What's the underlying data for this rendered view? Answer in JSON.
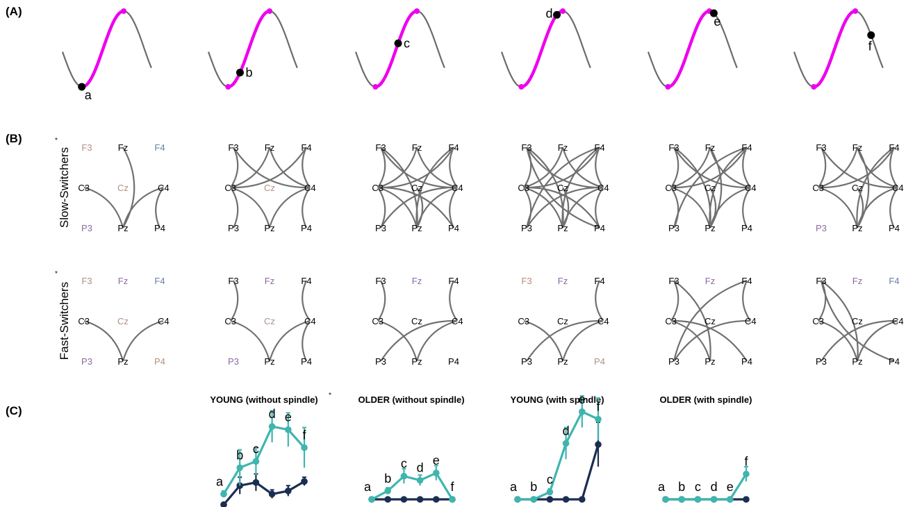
{
  "panels": {
    "A": "(A)",
    "B": "(B)",
    "C": "(C)"
  },
  "star": "*",
  "colors": {
    "wave": "#6b6b6b",
    "highlight": "#ee00ee",
    "marker": "#000000",
    "edge": "#707070",
    "young": "#3fb5ae",
    "older": "#1b2d52",
    "inactive_a": "#b09080",
    "inactive_b": "#8a6aa0",
    "inactive_c": "#6a7ea0"
  },
  "phase_points": [
    "a",
    "b",
    "c",
    "d",
    "e",
    "f"
  ],
  "network": {
    "electrodes": [
      "F3",
      "Fz",
      "F4",
      "C3",
      "Cz",
      "C4",
      "P3",
      "Pz",
      "P4"
    ],
    "rows": [
      {
        "label": "Slow-Switchers",
        "panels": [
          {
            "inactive": [
              "F3",
              "F4",
              "Cz",
              "P3"
            ],
            "edges": [
              [
                "Fz",
                "Pz"
              ],
              [
                "C3",
                "Pz"
              ],
              [
                "C4",
                "Pz"
              ],
              [
                "C4",
                "P4"
              ]
            ]
          },
          {
            "inactive": [
              "Cz"
            ],
            "edges": [
              [
                "F3",
                "C3"
              ],
              [
                "F3",
                "C4"
              ],
              [
                "Fz",
                "C3"
              ],
              [
                "Fz",
                "C4"
              ],
              [
                "F4",
                "C3"
              ],
              [
                "F4",
                "C4"
              ],
              [
                "C3",
                "P3"
              ],
              [
                "C3",
                "Pz"
              ],
              [
                "C4",
                "Pz"
              ],
              [
                "C4",
                "P4"
              ]
            ]
          },
          {
            "inactive": [],
            "edges": [
              [
                "F3",
                "C3"
              ],
              [
                "F3",
                "C4"
              ],
              [
                "F3",
                "Pz"
              ],
              [
                "Fz",
                "C3"
              ],
              [
                "Fz",
                "C4"
              ],
              [
                "F4",
                "C3"
              ],
              [
                "F4",
                "C4"
              ],
              [
                "F4",
                "Pz"
              ],
              [
                "C3",
                "P3"
              ],
              [
                "C3",
                "Pz"
              ],
              [
                "C3",
                "P4"
              ],
              [
                "C4",
                "P3"
              ],
              [
                "C4",
                "Pz"
              ],
              [
                "C4",
                "P4"
              ],
              [
                "Cz",
                "Pz"
              ]
            ]
          },
          {
            "inactive": [],
            "edges": [
              [
                "F3",
                "C3"
              ],
              [
                "F3",
                "C4"
              ],
              [
                "F3",
                "Pz"
              ],
              [
                "F3",
                "P4"
              ],
              [
                "Fz",
                "C3"
              ],
              [
                "Fz",
                "C4"
              ],
              [
                "F4",
                "C3"
              ],
              [
                "F4",
                "C4"
              ],
              [
                "F4",
                "Pz"
              ],
              [
                "F4",
                "P3"
              ],
              [
                "C3",
                "P3"
              ],
              [
                "C3",
                "Pz"
              ],
              [
                "C3",
                "P4"
              ],
              [
                "C4",
                "P3"
              ],
              [
                "C4",
                "Pz"
              ],
              [
                "C4",
                "P4"
              ],
              [
                "Cz",
                "Pz"
              ]
            ]
          },
          {
            "inactive": [],
            "edges": [
              [
                "F3",
                "C3"
              ],
              [
                "F3",
                "C4"
              ],
              [
                "F3",
                "Pz"
              ],
              [
                "Fz",
                "C3"
              ],
              [
                "Fz",
                "C4"
              ],
              [
                "Fz",
                "Pz"
              ],
              [
                "F4",
                "C3"
              ],
              [
                "F4",
                "C4"
              ],
              [
                "F4",
                "Pz"
              ],
              [
                "F4",
                "P3"
              ],
              [
                "C3",
                "P3"
              ],
              [
                "C3",
                "Pz"
              ],
              [
                "C4",
                "Pz"
              ],
              [
                "C4",
                "P4"
              ],
              [
                "Cz",
                "Pz"
              ]
            ]
          },
          {
            "inactive": [
              "P3"
            ],
            "edges": [
              [
                "F3",
                "C3"
              ],
              [
                "F3",
                "C4"
              ],
              [
                "Fz",
                "C3"
              ],
              [
                "Fz",
                "C4"
              ],
              [
                "F4",
                "C3"
              ],
              [
                "F4",
                "C4"
              ],
              [
                "F4",
                "Pz"
              ],
              [
                "C3",
                "Pz"
              ],
              [
                "C4",
                "Pz"
              ],
              [
                "C4",
                "P4"
              ],
              [
                "Cz",
                "Pz"
              ],
              [
                "Fz",
                "Pz"
              ]
            ]
          }
        ]
      },
      {
        "label": "Fast-Switchers",
        "panels": [
          {
            "inactive": [
              "F3",
              "Fz",
              "F4",
              "Cz",
              "P3",
              "P4"
            ],
            "edges": [
              [
                "C3",
                "Pz"
              ],
              [
                "C4",
                "Pz"
              ]
            ]
          },
          {
            "inactive": [
              "Fz",
              "Cz",
              "P3"
            ],
            "edges": [
              [
                "F3",
                "C3"
              ],
              [
                "F4",
                "C4"
              ],
              [
                "C3",
                "Pz"
              ],
              [
                "C4",
                "Pz"
              ],
              [
                "C4",
                "P4"
              ]
            ]
          },
          {
            "inactive": [
              "Fz"
            ],
            "edges": [
              [
                "F3",
                "C3"
              ],
              [
                "F4",
                "C4"
              ],
              [
                "C3",
                "Pz"
              ],
              [
                "C4",
                "Pz"
              ],
              [
                "C4",
                "P3"
              ]
            ]
          },
          {
            "inactive": [
              "F3",
              "Fz",
              "P4"
            ],
            "edges": [
              [
                "F4",
                "C4"
              ],
              [
                "C3",
                "Pz"
              ],
              [
                "C4",
                "Pz"
              ],
              [
                "C4",
                "P3"
              ]
            ]
          },
          {
            "inactive": [
              "Fz"
            ],
            "edges": [
              [
                "F3",
                "C3"
              ],
              [
                "F3",
                "Pz"
              ],
              [
                "F4",
                "C4"
              ],
              [
                "F4",
                "P3"
              ],
              [
                "C3",
                "Pz"
              ],
              [
                "C3",
                "P4"
              ],
              [
                "C4",
                "P3"
              ]
            ]
          },
          {
            "inactive": [
              "Fz",
              "F4"
            ],
            "edges": [
              [
                "F3",
                "C3"
              ],
              [
                "F3",
                "Pz"
              ],
              [
                "F3",
                "P4"
              ],
              [
                "C3",
                "Pz"
              ],
              [
                "C4",
                "P3"
              ],
              [
                "C4",
                "Pz"
              ]
            ]
          }
        ]
      }
    ]
  },
  "chart_data": [
    {
      "type": "line",
      "title": "YOUNG (without spindle)",
      "starred": true,
      "categories": [
        "a",
        "b",
        "c",
        "d",
        "e",
        "f"
      ],
      "series": [
        {
          "values": [
            0.5,
            3.0,
            3.6,
            6.9,
            6.6,
            4.9
          ],
          "errors": [
            0.3,
            1.7,
            1.3,
            1.5,
            1.6,
            1.9
          ]
        },
        {
          "values": [
            -0.5,
            1.3,
            1.6,
            0.5,
            0.8,
            1.7
          ],
          "errors": [
            0.0,
            0.8,
            0.8,
            0.4,
            0.5,
            0.4
          ]
        }
      ]
    },
    {
      "type": "line",
      "title": "OLDER (without spindle)",
      "starred": false,
      "categories": [
        "a",
        "b",
        "c",
        "d",
        "e",
        "f"
      ],
      "series": [
        {
          "values": [
            0.0,
            0.8,
            2.2,
            1.8,
            2.5,
            0.0
          ],
          "errors": [
            0.0,
            0.3,
            0.7,
            0.5,
            0.7,
            0.0
          ]
        },
        {
          "values": [
            0.0,
            0.0,
            0.0,
            0.0,
            0.0,
            0.0
          ],
          "errors": [
            0,
            0,
            0,
            0,
            0,
            0
          ]
        }
      ]
    },
    {
      "type": "line",
      "title": "YOUNG (with spindle)",
      "starred": false,
      "categories": [
        "a",
        "b",
        "c",
        "d",
        "e",
        "f"
      ],
      "series": [
        {
          "values": [
            0.0,
            0.0,
            0.7,
            5.3,
            8.3,
            7.6
          ],
          "errors": [
            0.0,
            0.0,
            0.3,
            1.5,
            1.5,
            2.0
          ]
        },
        {
          "values": [
            0.0,
            0.0,
            0.0,
            0.0,
            0.0,
            5.2
          ],
          "errors": [
            0,
            0,
            0,
            0,
            0,
            2.1
          ]
        }
      ]
    },
    {
      "type": "line",
      "title": "OLDER (with spindle)",
      "starred": false,
      "categories": [
        "a",
        "b",
        "c",
        "d",
        "e",
        "f"
      ],
      "series": [
        {
          "values": [
            0.0,
            0.0,
            0.0,
            0.0,
            0.0,
            2.4
          ],
          "errors": [
            0,
            0,
            0,
            0,
            0,
            0.7
          ]
        },
        {
          "values": [
            0.0,
            0.0,
            0.0,
            0.0,
            0.0,
            0.0
          ],
          "errors": [
            0,
            0,
            0,
            0,
            0,
            0
          ]
        }
      ]
    }
  ]
}
